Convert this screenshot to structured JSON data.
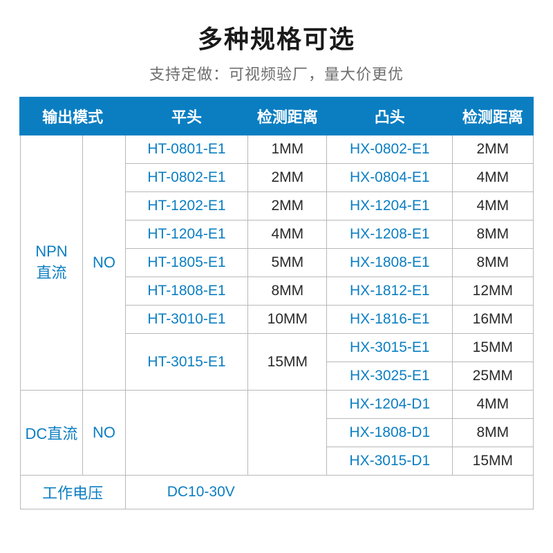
{
  "header": {
    "title": "多种规格可选",
    "subtitle": "支持定做：可视频验厂，量大价更优"
  },
  "colors": {
    "header_bg": "#0b7ec2",
    "header_text": "#ffffff",
    "cell_text_blue": "#0b7ec2",
    "cell_text_dark": "#2a2a2a",
    "border": "#b8b8b8",
    "title_text": "#1a1a1a",
    "subtitle_text": "#6d6d6d",
    "background": "#ffffff"
  },
  "columns": [
    "输出模式",
    "平头",
    "检测距离",
    "凸头",
    "检测距离"
  ],
  "npn": {
    "label_line1": "NPN",
    "label_line2": "直流",
    "state": "NO",
    "flat": [
      {
        "model": "HT-0801-E1",
        "dist": "1MM"
      },
      {
        "model": "HT-0802-E1",
        "dist": "2MM"
      },
      {
        "model": "HT-1202-E1",
        "dist": "2MM"
      },
      {
        "model": "HT-1204-E1",
        "dist": "4MM"
      },
      {
        "model": "HT-1805-E1",
        "dist": "5MM"
      },
      {
        "model": "HT-1808-E1",
        "dist": "8MM"
      },
      {
        "model": "HT-3010-E1",
        "dist": "10MM"
      },
      {
        "model": "HT-3015-E1",
        "dist": "15MM"
      }
    ],
    "raised": [
      {
        "model": "HX-0802-E1",
        "dist": "2MM"
      },
      {
        "model": "HX-0804-E1",
        "dist": "4MM"
      },
      {
        "model": "HX-1204-E1",
        "dist": "4MM"
      },
      {
        "model": "HX-1208-E1",
        "dist": "8MM"
      },
      {
        "model": "HX-1808-E1",
        "dist": "8MM"
      },
      {
        "model": "HX-1812-E1",
        "dist": "12MM"
      },
      {
        "model": "HX-1816-E1",
        "dist": "16MM"
      },
      {
        "model": "HX-3015-E1",
        "dist": "15MM"
      },
      {
        "model": "HX-3025-E1",
        "dist": "25MM"
      }
    ]
  },
  "dc": {
    "label": "DC直流",
    "state": "NO",
    "raised": [
      {
        "model": "HX-1204-D1",
        "dist": "4MM"
      },
      {
        "model": "HX-1808-D1",
        "dist": "8MM"
      },
      {
        "model": "HX-3015-D1",
        "dist": "15MM"
      }
    ]
  },
  "voltage": {
    "label": "工作电压",
    "value": "DC10-30V"
  },
  "fonts": {
    "title": 36,
    "subtitle": 22,
    "header": 22,
    "cell": 21
  }
}
